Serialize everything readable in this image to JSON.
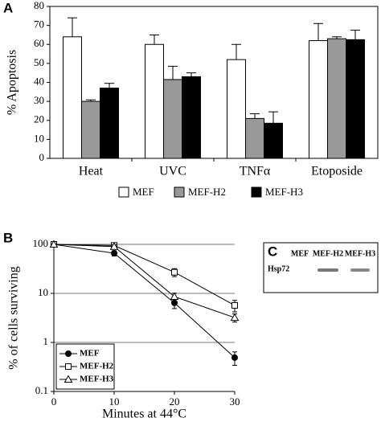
{
  "chart_data": [
    {
      "type": "bar",
      "panel": "A",
      "y_label": "% Apoptosis",
      "categories": [
        "Heat",
        "UVC",
        "TNFα",
        "Etoposide"
      ],
      "series": [
        {
          "name": "MEF",
          "color": "#ffffff",
          "values": [
            64,
            60,
            52,
            62
          ],
          "errors": [
            10,
            5,
            8,
            9
          ]
        },
        {
          "name": "MEF-H2",
          "color": "#999999",
          "values": [
            30,
            41.5,
            21,
            63
          ],
          "errors": [
            0.8,
            7,
            2.5,
            1
          ]
        },
        {
          "name": "MEF-H3",
          "color": "#000000",
          "values": [
            37,
            43,
            18.5,
            62.5
          ],
          "errors": [
            2.5,
            2,
            6,
            5
          ]
        }
      ],
      "ylim": [
        0,
        80
      ],
      "yticks": [
        0,
        10,
        20,
        30,
        40,
        50,
        60,
        70,
        80
      ],
      "legend": "bottom"
    },
    {
      "type": "line",
      "panel": "B",
      "x_label": "Minutes at 44°C",
      "y_label": "% of cells surviving",
      "x": [
        0,
        10,
        20,
        30
      ],
      "series": [
        {
          "name": "MEF",
          "color": "#000000",
          "marker": "circle",
          "marker_fill": "#000000",
          "values": [
            100,
            66,
            6.4,
            0.49
          ],
          "errors": [
            0,
            8,
            1.5,
            0.15
          ]
        },
        {
          "name": "MEF-H2",
          "color": "#000000",
          "marker": "square",
          "marker_fill": "#ffffff",
          "values": [
            100,
            95,
            27,
            5.7
          ],
          "errors": [
            0,
            10,
            5,
            1.5
          ]
        },
        {
          "name": "MEF-H3",
          "color": "#000000",
          "marker": "triangle",
          "marker_fill": "#ffffff",
          "values": [
            100,
            90,
            8.6,
            3.2
          ],
          "errors": [
            0,
            8,
            1.5,
            0.6
          ]
        }
      ],
      "xlim": [
        0,
        30
      ],
      "xticks": [
        0,
        10,
        20,
        30
      ],
      "ylim": [
        0.1,
        100
      ],
      "yticks": [
        0.1,
        1,
        10,
        100
      ],
      "log_y": true,
      "grid": true,
      "legend": "lower left"
    }
  ],
  "blot": {
    "panel": "C",
    "lanes": [
      "MEF",
      "MEF-H2",
      "MEF-H3"
    ],
    "protein": "Hsp72"
  }
}
